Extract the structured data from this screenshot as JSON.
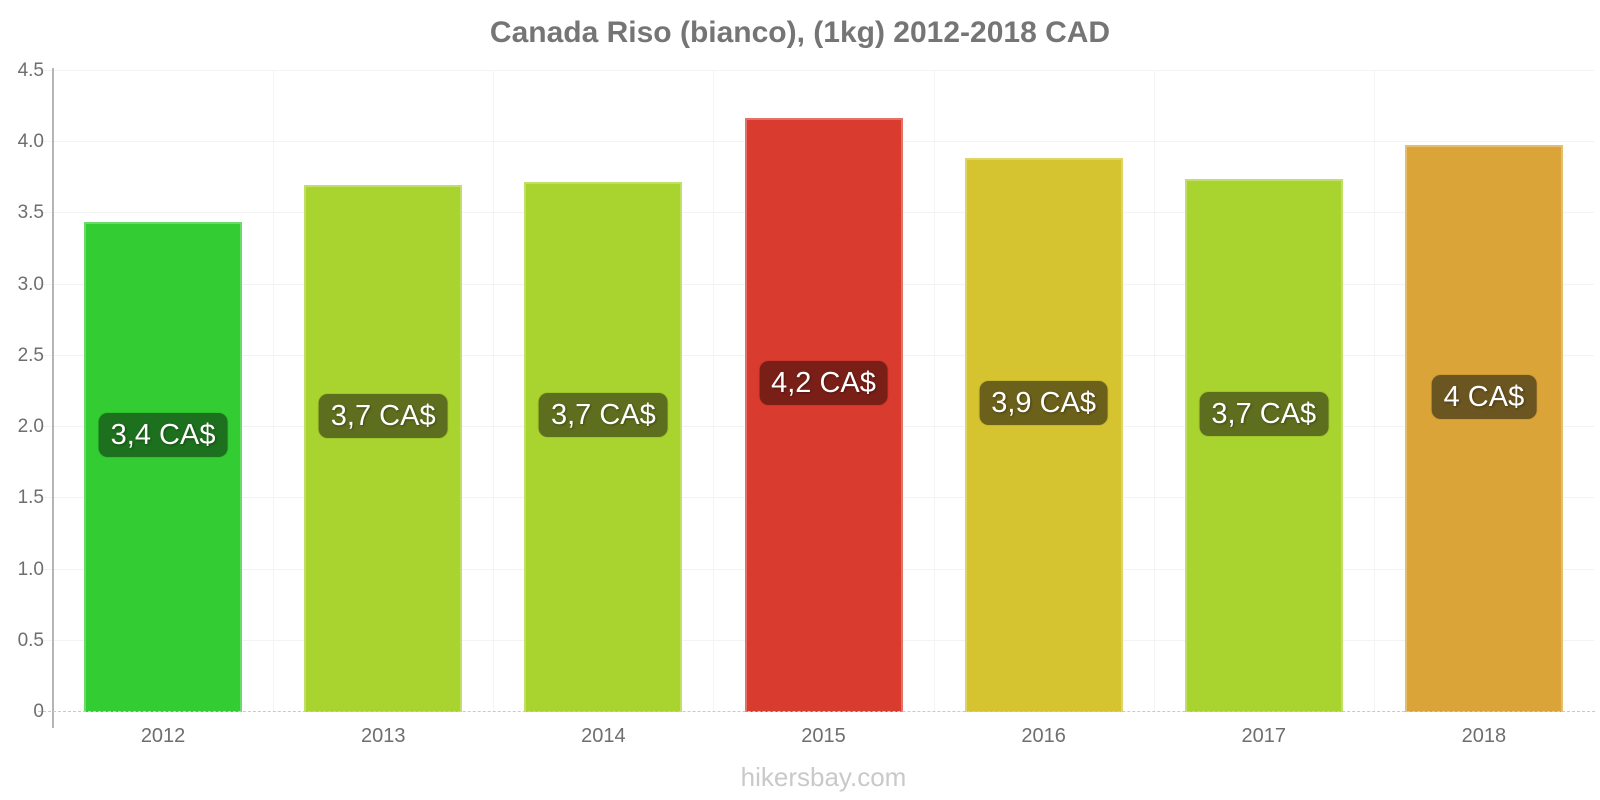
{
  "title": "Canada Riso (bianco), (1kg) 2012-2018 CAD",
  "watermark": "hikersbay.com",
  "colors": {
    "title_text": "#757575",
    "axis_label_text": "#6e6e6e",
    "y_axis_line": "#b5b5b5",
    "baseline": "#c9c9c9",
    "gridline": "#f3f3f3",
    "watermark_text": "#c9c9c9",
    "value_label_text": "#ffffff"
  },
  "y_axis": {
    "tick_labels": [
      "0",
      "0.5",
      "1.0",
      "1.5",
      "2.0",
      "2.5",
      "3.0",
      "3.5",
      "4.0",
      "4.5"
    ]
  },
  "chart_data": {
    "type": "bar",
    "title": "Canada Riso (bianco), (1kg) 2012-2018 CAD",
    "categories": [
      "2012",
      "2013",
      "2014",
      "2015",
      "2016",
      "2017",
      "2018"
    ],
    "values": [
      3.44,
      3.7,
      3.72,
      4.17,
      3.89,
      3.74,
      3.98
    ],
    "value_labels": [
      "3,4 CA$",
      "3,7 CA$",
      "3,7 CA$",
      "4,2 CA$",
      "3,9 CA$",
      "3,7 CA$",
      "4 CA$"
    ],
    "bar_colors": [
      "#33cc33",
      "#a9d32e",
      "#a9d32e",
      "#d93b2e",
      "#d5c32f",
      "#a9d32e",
      "#dba438"
    ],
    "label_bg_colors": [
      "#1d701d",
      "#5d6f1e",
      "#5d6f1e",
      "#7a1f18",
      "#6b611a",
      "#5d6f1e",
      "#6b5520"
    ],
    "xlabel": "",
    "ylabel": "",
    "ylim": [
      0,
      4.5
    ],
    "y_ticks": [
      0,
      0.5,
      1.0,
      1.5,
      2.0,
      2.5,
      3.0,
      3.5,
      4.0,
      4.5
    ],
    "grid": true,
    "legend": false,
    "currency": "CAD"
  }
}
